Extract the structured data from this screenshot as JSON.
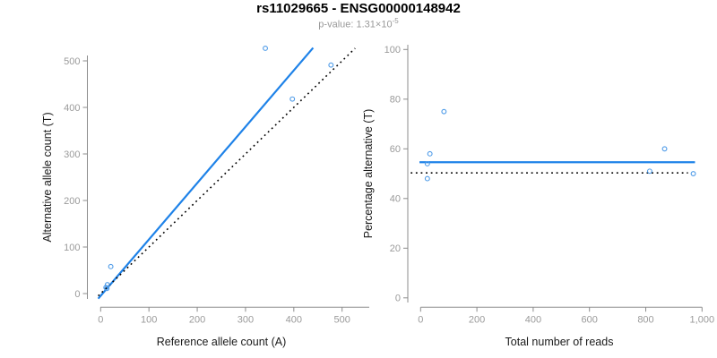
{
  "header": {
    "title": "rs11029665 - ENSG00000148942",
    "pvalue_prefix": "p-value: 1.31×10",
    "pvalue_exponent": "-5"
  },
  "colors": {
    "line_blue": "#1E82E8",
    "point_blue": "#4E9BE8",
    "dotted_black": "#000000",
    "axis_gray": "#8C8C8C",
    "tick_label_gray": "#9A9A9A",
    "axis_title_dark": "#1A1A1A",
    "subtitle_gray": "#999999"
  },
  "chart_data": [
    {
      "type": "scatter",
      "panel": "left",
      "title": "",
      "xlabel": "Reference allele count (A)",
      "ylabel": "Alternative allele count (T)",
      "xlim": [
        0,
        500
      ],
      "ylim": [
        0,
        500
      ],
      "grid": false,
      "legend": "none",
      "x_tick_values": [
        0,
        100,
        200,
        300,
        400,
        500
      ],
      "x_tick_labels": [
        "0",
        "100",
        "200",
        "300",
        "400",
        "500"
      ],
      "y_tick_values": [
        0,
        100,
        200,
        300,
        400,
        500
      ],
      "y_tick_labels": [
        "0",
        "100",
        "200",
        "300",
        "400",
        "500"
      ],
      "points": [
        [
          11,
          13
        ],
        [
          13,
          11
        ],
        [
          14,
          19
        ],
        [
          21,
          58
        ],
        [
          341,
          527
        ],
        [
          397,
          418
        ],
        [
          477,
          491
        ]
      ],
      "lines": [
        {
          "name": "regression-line",
          "style": "solid",
          "color": "#1E82E8",
          "x1": -5,
          "y1": -10.9,
          "x2": 440,
          "y2": 528
        },
        {
          "name": "identity-line",
          "style": "dotted",
          "color": "#000000",
          "x1": -5,
          "y1": -5,
          "x2": 527,
          "y2": 527
        }
      ]
    },
    {
      "type": "scatter",
      "panel": "right",
      "title": "",
      "xlabel": "Total number of reads",
      "ylabel": "Percentage alternative (T)",
      "xlim": [
        0,
        1000
      ],
      "ylim": [
        0,
        100
      ],
      "grid": false,
      "legend": "none",
      "x_tick_values": [
        0,
        200,
        400,
        600,
        800,
        1000
      ],
      "x_tick_labels": [
        "0",
        "200",
        "400",
        "600",
        "800",
        "1,000"
      ],
      "y_tick_values": [
        0,
        20,
        40,
        60,
        80,
        100
      ],
      "y_tick_labels": [
        "0",
        "20",
        "40",
        "60",
        "80",
        "100"
      ],
      "points": [
        [
          24,
          54
        ],
        [
          24,
          48
        ],
        [
          33,
          58
        ],
        [
          83,
          75
        ],
        [
          814,
          51
        ],
        [
          867,
          60
        ],
        [
          969,
          50
        ]
      ],
      "lines": [
        {
          "name": "mean-line",
          "style": "solid",
          "color": "#1E82E8",
          "x1": -4,
          "y1": 54.6,
          "x2": 975,
          "y2": 54.6
        },
        {
          "name": "expected-line",
          "style": "dotted",
          "color": "#000000",
          "x1": -35,
          "y1": 50.3,
          "x2": 950,
          "y2": 50.3
        }
      ]
    }
  ]
}
